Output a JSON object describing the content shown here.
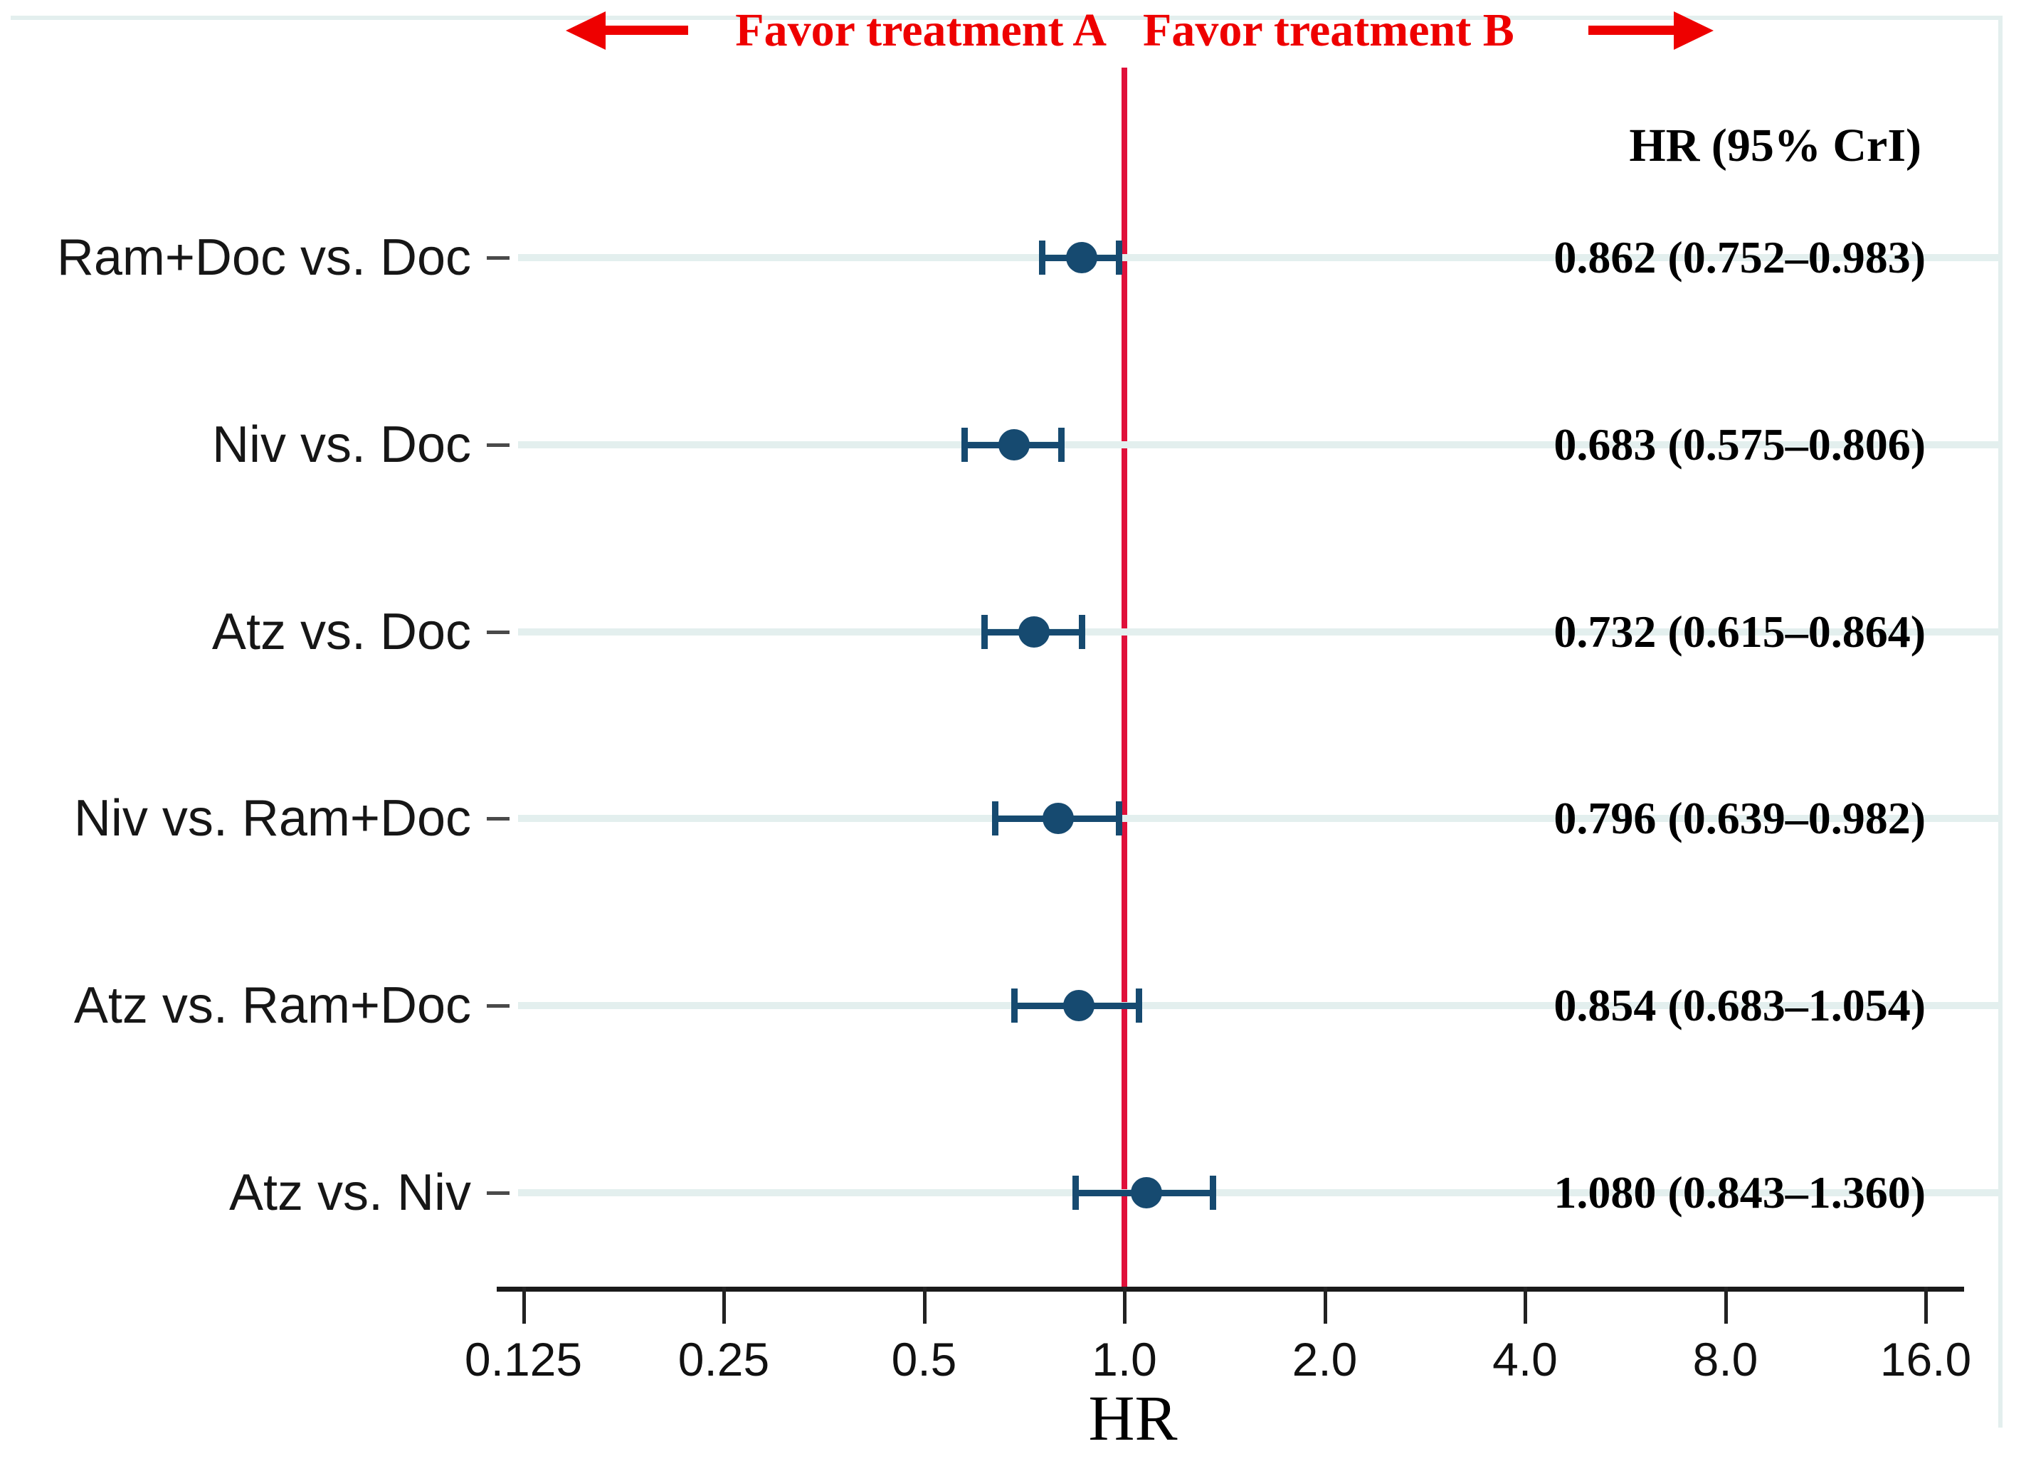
{
  "header": {
    "favor_left": "Favor treatment A",
    "favor_right": "Favor treatment B",
    "value_column_header": "HR (95% CrI)"
  },
  "chart_data": {
    "type": "scatter",
    "subtype": "forest-plot",
    "title": "",
    "xlabel": "HR",
    "x_scale": "log2",
    "xlim": [
      0.125,
      16.0
    ],
    "x_ticks": [
      0.125,
      0.25,
      0.5,
      1.0,
      2.0,
      4.0,
      8.0,
      16.0
    ],
    "x_tick_labels": [
      "0.125",
      "0.25",
      "0.5",
      "1.0",
      "2.0",
      "4.0",
      "8.0",
      "16.0"
    ],
    "reference_line_x": 1.0,
    "grid": "row-guides-only",
    "legend": "none",
    "rows": [
      {
        "label": "Ram+Doc vs. Doc",
        "hr": 0.862,
        "ci_low": 0.752,
        "ci_high": 0.983,
        "value_text": "0.862 (0.752–0.983)"
      },
      {
        "label": "Niv vs. Doc",
        "hr": 0.683,
        "ci_low": 0.575,
        "ci_high": 0.806,
        "value_text": "0.683 (0.575–0.806)"
      },
      {
        "label": "Atz vs. Doc",
        "hr": 0.732,
        "ci_low": 0.615,
        "ci_high": 0.864,
        "value_text": "0.732 (0.615–0.864)"
      },
      {
        "label": "Niv vs. Ram+Doc",
        "hr": 0.796,
        "ci_low": 0.639,
        "ci_high": 0.982,
        "value_text": "0.796 (0.639–0.982)"
      },
      {
        "label": "Atz vs. Ram+Doc",
        "hr": 0.854,
        "ci_low": 0.683,
        "ci_high": 1.054,
        "value_text": "0.854 (0.683–1.054)"
      },
      {
        "label": "Atz vs. Niv",
        "hr": 1.08,
        "ci_low": 0.843,
        "ci_high": 1.36,
        "value_text": "1.080 (0.843–1.360)"
      }
    ],
    "colors": {
      "marker": "#164a70",
      "reference_line": "#e0103a",
      "annotation_red": "#ee0000",
      "row_guide": "#e3efee",
      "axis": "#1a1a1a"
    }
  }
}
